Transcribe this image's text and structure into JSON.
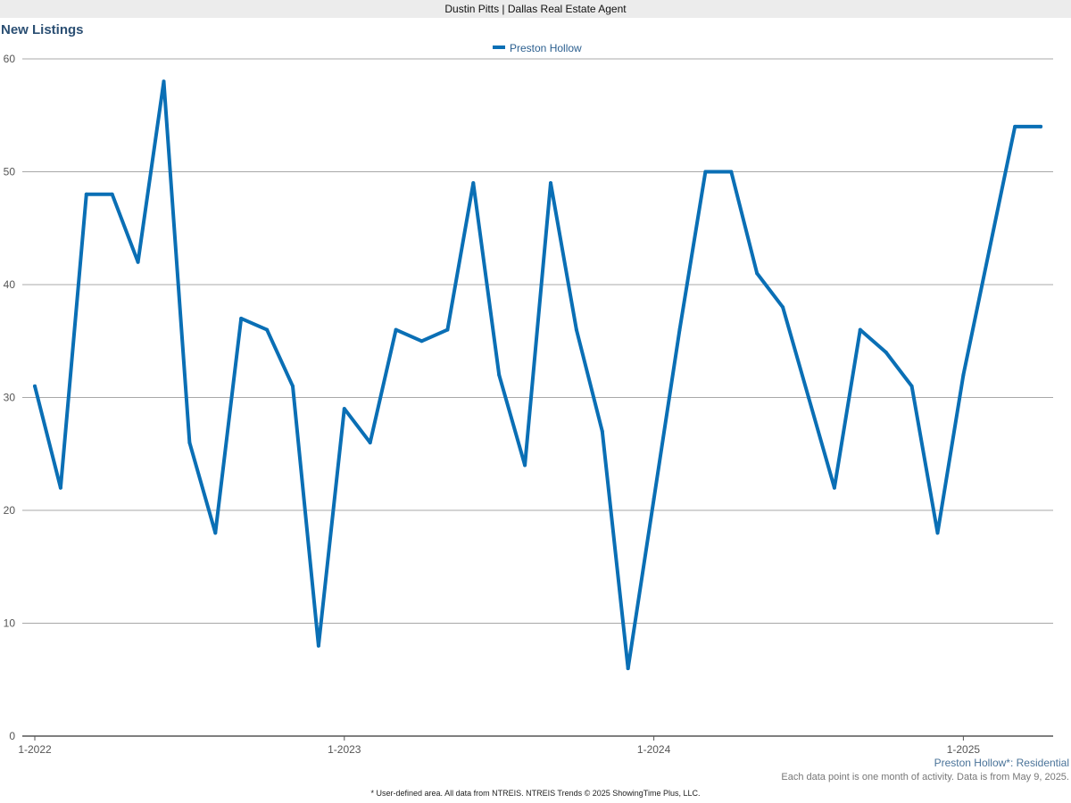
{
  "header": {
    "banner": "Dustin Pitts | Dallas Real Estate Agent"
  },
  "chart_data": {
    "type": "line",
    "title": "New Listings",
    "legend": {
      "position": "top-center",
      "entries": [
        "Preston Hollow"
      ]
    },
    "series": [
      {
        "name": "Preston Hollow",
        "color": "#0a6fb5",
        "values": [
          31,
          22,
          48,
          48,
          42,
          58,
          26,
          18,
          37,
          36,
          31,
          8,
          29,
          26,
          36,
          35,
          36,
          49,
          32,
          24,
          49,
          36,
          27,
          6,
          21,
          36,
          50,
          50,
          41,
          38,
          30,
          22,
          36,
          34,
          31,
          18,
          32,
          43,
          54,
          54
        ]
      }
    ],
    "x_start": "1-2022",
    "x_tick_labels": [
      "1-2022",
      "1-2023",
      "1-2024",
      "1-2025"
    ],
    "x_tick_indices": [
      0,
      12,
      24,
      36
    ],
    "ylim": [
      0,
      60
    ],
    "y_ticks": [
      0,
      10,
      20,
      30,
      40,
      50,
      60
    ],
    "grid": true,
    "xlabel": "",
    "ylabel": ""
  },
  "footer": {
    "area_label": "Preston Hollow*: Residential",
    "note": "Each data point is one month of activity. Data is from May 9, 2025.",
    "source": "* User-defined area. All data from NTREIS. NTREIS Trends © 2025 ShowingTime Plus, LLC."
  }
}
